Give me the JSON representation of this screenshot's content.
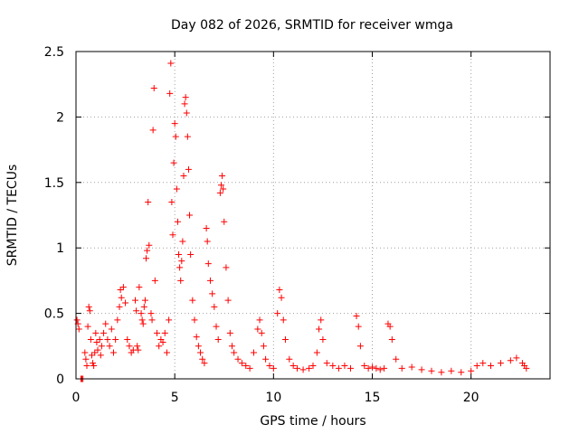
{
  "chart_data": {
    "type": "scatter",
    "title": "Day 082 of 2026, SRMTID for receiver wmga",
    "xlabel": "GPS time / hours",
    "ylabel": "SRMTID / TECUs",
    "xlim": [
      0,
      24
    ],
    "ylim": [
      0,
      2.5
    ],
    "xticks": [
      0,
      5,
      10,
      15,
      20
    ],
    "xtick_labels": [
      "0",
      "5",
      "10",
      "15",
      "20"
    ],
    "yticks": [
      0,
      0.5,
      1,
      1.5,
      2,
      2.5
    ],
    "ytick_labels": [
      "0",
      "0.5",
      "1",
      "1.5",
      "2",
      "2.5"
    ],
    "grid": true,
    "marker": "+",
    "color": "#ff0000",
    "series": [
      {
        "name": "wmga",
        "points": [
          [
            0.05,
            0.45
          ],
          [
            0.1,
            0.42
          ],
          [
            0.15,
            0.38
          ],
          [
            0.25,
            0.0
          ],
          [
            0.3,
            0.0
          ],
          [
            0.35,
            0.0
          ],
          [
            0.45,
            0.2
          ],
          [
            0.5,
            0.15
          ],
          [
            0.55,
            0.1
          ],
          [
            0.6,
            0.4
          ],
          [
            0.65,
            0.55
          ],
          [
            0.7,
            0.52
          ],
          [
            0.75,
            0.3
          ],
          [
            0.8,
            0.18
          ],
          [
            0.85,
            0.12
          ],
          [
            0.9,
            0.1
          ],
          [
            0.95,
            0.2
          ],
          [
            1.0,
            0.35
          ],
          [
            1.05,
            0.28
          ],
          [
            1.1,
            0.22
          ],
          [
            1.2,
            0.3
          ],
          [
            1.25,
            0.18
          ],
          [
            1.3,
            0.25
          ],
          [
            1.4,
            0.35
          ],
          [
            1.5,
            0.42
          ],
          [
            1.6,
            0.3
          ],
          [
            1.7,
            0.25
          ],
          [
            1.8,
            0.38
          ],
          [
            1.9,
            0.2
          ],
          [
            2.0,
            0.3
          ],
          [
            2.1,
            0.45
          ],
          [
            2.2,
            0.55
          ],
          [
            2.25,
            0.68
          ],
          [
            2.3,
            0.62
          ],
          [
            2.4,
            0.7
          ],
          [
            2.5,
            0.58
          ],
          [
            2.6,
            0.3
          ],
          [
            2.7,
            0.25
          ],
          [
            2.8,
            0.2
          ],
          [
            2.9,
            0.22
          ],
          [
            3.0,
            0.6
          ],
          [
            3.05,
            0.52
          ],
          [
            3.1,
            0.25
          ],
          [
            3.15,
            0.22
          ],
          [
            3.2,
            0.7
          ],
          [
            3.3,
            0.5
          ],
          [
            3.35,
            0.45
          ],
          [
            3.4,
            0.42
          ],
          [
            3.45,
            0.55
          ],
          [
            3.5,
            0.6
          ],
          [
            3.55,
            0.92
          ],
          [
            3.6,
            0.98
          ],
          [
            3.65,
            1.35
          ],
          [
            3.7,
            1.02
          ],
          [
            3.8,
            0.5
          ],
          [
            3.85,
            0.45
          ],
          [
            3.9,
            1.9
          ],
          [
            3.95,
            2.22
          ],
          [
            4.0,
            0.75
          ],
          [
            4.1,
            0.35
          ],
          [
            4.2,
            0.25
          ],
          [
            4.3,
            0.3
          ],
          [
            4.4,
            0.28
          ],
          [
            4.5,
            0.35
          ],
          [
            4.6,
            0.2
          ],
          [
            4.7,
            0.45
          ],
          [
            4.75,
            2.18
          ],
          [
            4.8,
            2.41
          ],
          [
            4.85,
            1.35
          ],
          [
            4.9,
            1.1
          ],
          [
            4.95,
            1.65
          ],
          [
            5.0,
            1.95
          ],
          [
            5.05,
            1.85
          ],
          [
            5.1,
            1.45
          ],
          [
            5.15,
            1.2
          ],
          [
            5.2,
            0.95
          ],
          [
            5.25,
            0.85
          ],
          [
            5.3,
            0.75
          ],
          [
            5.35,
            0.9
          ],
          [
            5.4,
            1.05
          ],
          [
            5.45,
            1.55
          ],
          [
            5.5,
            2.1
          ],
          [
            5.55,
            2.15
          ],
          [
            5.6,
            2.03
          ],
          [
            5.65,
            1.85
          ],
          [
            5.7,
            1.6
          ],
          [
            5.75,
            1.25
          ],
          [
            5.8,
            0.95
          ],
          [
            5.9,
            0.6
          ],
          [
            6.0,
            0.45
          ],
          [
            6.1,
            0.32
          ],
          [
            6.2,
            0.25
          ],
          [
            6.3,
            0.2
          ],
          [
            6.4,
            0.15
          ],
          [
            6.5,
            0.12
          ],
          [
            6.6,
            1.15
          ],
          [
            6.65,
            1.05
          ],
          [
            6.7,
            0.88
          ],
          [
            6.8,
            0.75
          ],
          [
            6.9,
            0.65
          ],
          [
            7.0,
            0.55
          ],
          [
            7.1,
            0.4
          ],
          [
            7.2,
            0.3
          ],
          [
            7.3,
            1.42
          ],
          [
            7.35,
            1.48
          ],
          [
            7.4,
            1.55
          ],
          [
            7.45,
            1.45
          ],
          [
            7.5,
            1.2
          ],
          [
            7.6,
            0.85
          ],
          [
            7.7,
            0.6
          ],
          [
            7.8,
            0.35
          ],
          [
            7.9,
            0.25
          ],
          [
            8.0,
            0.2
          ],
          [
            8.2,
            0.15
          ],
          [
            8.4,
            0.12
          ],
          [
            8.6,
            0.1
          ],
          [
            8.8,
            0.08
          ],
          [
            9.0,
            0.2
          ],
          [
            9.2,
            0.38
          ],
          [
            9.3,
            0.45
          ],
          [
            9.4,
            0.35
          ],
          [
            9.5,
            0.25
          ],
          [
            9.6,
            0.15
          ],
          [
            9.8,
            0.1
          ],
          [
            10.0,
            0.08
          ],
          [
            10.2,
            0.5
          ],
          [
            10.3,
            0.68
          ],
          [
            10.4,
            0.62
          ],
          [
            10.5,
            0.45
          ],
          [
            10.6,
            0.3
          ],
          [
            10.8,
            0.15
          ],
          [
            11.0,
            0.1
          ],
          [
            11.2,
            0.08
          ],
          [
            11.5,
            0.07
          ],
          [
            11.8,
            0.08
          ],
          [
            12.0,
            0.1
          ],
          [
            12.2,
            0.2
          ],
          [
            12.3,
            0.38
          ],
          [
            12.4,
            0.45
          ],
          [
            12.5,
            0.3
          ],
          [
            12.7,
            0.12
          ],
          [
            13.0,
            0.1
          ],
          [
            13.3,
            0.08
          ],
          [
            13.6,
            0.1
          ],
          [
            13.9,
            0.08
          ],
          [
            14.2,
            0.48
          ],
          [
            14.3,
            0.4
          ],
          [
            14.4,
            0.25
          ],
          [
            14.6,
            0.1
          ],
          [
            14.8,
            0.08
          ],
          [
            15.0,
            0.09
          ],
          [
            15.2,
            0.08
          ],
          [
            15.4,
            0.07
          ],
          [
            15.6,
            0.08
          ],
          [
            15.8,
            0.42
          ],
          [
            15.9,
            0.4
          ],
          [
            16.0,
            0.3
          ],
          [
            16.2,
            0.15
          ],
          [
            16.5,
            0.08
          ],
          [
            17.0,
            0.09
          ],
          [
            17.5,
            0.07
          ],
          [
            18.0,
            0.06
          ],
          [
            18.5,
            0.05
          ],
          [
            19.0,
            0.06
          ],
          [
            19.5,
            0.05
          ],
          [
            20.0,
            0.06
          ],
          [
            20.3,
            0.1
          ],
          [
            20.6,
            0.12
          ],
          [
            21.0,
            0.1
          ],
          [
            21.5,
            0.12
          ],
          [
            22.0,
            0.14
          ],
          [
            22.3,
            0.16
          ],
          [
            22.6,
            0.12
          ],
          [
            22.7,
            0.1
          ],
          [
            22.8,
            0.08
          ]
        ]
      }
    ]
  }
}
